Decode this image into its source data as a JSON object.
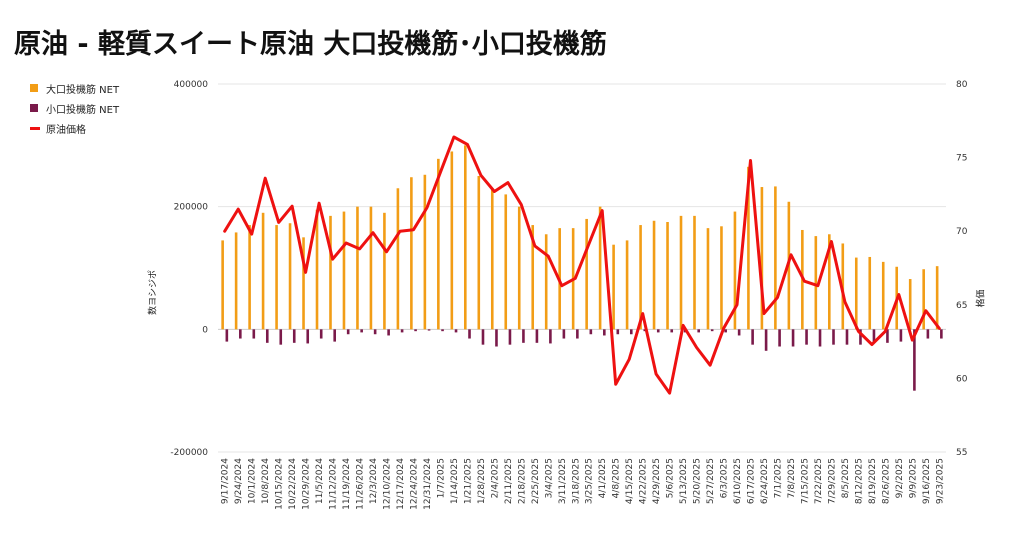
{
  "title": "原油 - 軽質スイート原油 大口投機筋･小口投機筋",
  "colors": {
    "large": "#f29d16",
    "small": "#7a1a4a",
    "price": "#ee1111"
  },
  "chart_data": {
    "type": "bar",
    "title": "原油 - 軽質スイート原油 大口投機筋･小口投機筋",
    "ylabel": "数ヨシジポ",
    "y2label": "格価",
    "ylim": [
      -200000,
      400000
    ],
    "y2lim": [
      55,
      80
    ],
    "yticks": [
      "400000",
      "200000",
      "0",
      "-200000"
    ],
    "y2ticks": [
      "80",
      "75",
      "70",
      "65",
      "60",
      "55"
    ],
    "legend_position": "top-left",
    "grid": "horizontal",
    "categories": [
      "9/17/2024",
      "9/24/2024",
      "10/1/2024",
      "10/8/2024",
      "10/15/2024",
      "10/22/2024",
      "10/29/2024",
      "11/5/2024",
      "11/12/2024",
      "11/19/2024",
      "11/26/2024",
      "12/3/2024",
      "12/10/2024",
      "12/17/2024",
      "12/24/2024",
      "12/31/2024",
      "1/7/2025",
      "1/14/2025",
      "1/21/2025",
      "1/28/2025",
      "2/4/2025",
      "2/11/2025",
      "2/18/2025",
      "2/25/2025",
      "3/4/2025",
      "3/11/2025",
      "3/18/2025",
      "3/25/2025",
      "4/1/2025",
      "4/8/2025",
      "4/15/2025",
      "4/22/2025",
      "4/29/2025",
      "5/6/2025",
      "5/13/2025",
      "5/20/2025",
      "5/27/2025",
      "6/3/2025",
      "6/10/2025",
      "6/17/2025",
      "6/24/2025",
      "7/1/2025",
      "7/8/2025",
      "7/15/2025",
      "7/22/2025",
      "7/29/2025",
      "8/5/2025",
      "8/12/2025",
      "8/19/2025",
      "8/26/2025",
      "9/2/2025",
      "9/9/2025",
      "9/16/2025",
      "9/23/2025"
    ],
    "series": [
      {
        "name": "大口投機筋 NET",
        "kind": "bar",
        "axis": "left",
        "values": [
          145000,
          158000,
          170000,
          190000,
          170000,
          173000,
          150000,
          195000,
          185000,
          192000,
          200000,
          200000,
          190000,
          230000,
          248000,
          252000,
          278000,
          290000,
          300000,
          250000,
          230000,
          220000,
          200000,
          170000,
          155000,
          165000,
          165000,
          180000,
          200000,
          138000,
          145000,
          170000,
          177000,
          175000,
          185000,
          185000,
          165000,
          168000,
          192000,
          265000,
          232000,
          233000,
          208000,
          162000,
          152000,
          155000,
          140000,
          117000,
          118000,
          110000,
          102000,
          82000,
          98000,
          103000
        ]
      },
      {
        "name": "小口投機筋 NET",
        "kind": "bar",
        "axis": "left",
        "values": [
          -20000,
          -15000,
          -15000,
          -22000,
          -25000,
          -22000,
          -23000,
          -15000,
          -20000,
          -8000,
          -5000,
          -8000,
          -10000,
          -5000,
          -3000,
          -2000,
          -3000,
          -5000,
          -15000,
          -25000,
          -28000,
          -25000,
          -22000,
          -22000,
          -23000,
          -15000,
          -15000,
          -8000,
          -10000,
          -8000,
          -8000,
          -3000,
          -5000,
          -5000,
          -5000,
          -5000,
          -3000,
          -5000,
          -10000,
          -25000,
          -35000,
          -28000,
          -28000,
          -25000,
          -28000,
          -25000,
          -25000,
          -25000,
          -22000,
          -22000,
          -20000,
          -100000,
          -15000,
          -15000
        ]
      },
      {
        "name": "原油価格",
        "kind": "line",
        "axis": "right",
        "values": [
          70.0,
          71.5,
          69.8,
          73.6,
          70.6,
          71.7,
          67.2,
          71.9,
          68.1,
          69.2,
          68.8,
          69.9,
          68.6,
          70.0,
          70.1,
          71.6,
          74.0,
          76.4,
          75.9,
          73.8,
          72.7,
          73.3,
          71.8,
          69.0,
          68.3,
          66.3,
          66.8,
          69.1,
          71.4,
          59.6,
          61.3,
          64.4,
          60.3,
          59.0,
          63.6,
          62.1,
          60.9,
          63.4,
          65.0,
          74.8,
          64.4,
          65.5,
          68.4,
          66.6,
          66.3,
          69.3,
          65.2,
          63.2,
          62.3,
          63.2,
          65.7,
          62.6,
          64.6,
          63.4
        ]
      }
    ]
  },
  "legend": [
    {
      "label": "大口投機筋  NET",
      "type": "box",
      "color": "#f29d16"
    },
    {
      "label": "小口投機筋  NET",
      "type": "box",
      "color": "#7a1a4a"
    },
    {
      "label": "原油価格",
      "type": "line",
      "color": "#ee1111"
    }
  ]
}
